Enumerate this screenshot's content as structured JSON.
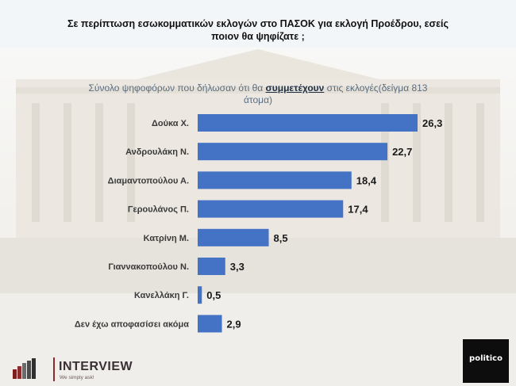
{
  "title": "Σε περίπτωση εσωκομματικών εκλογών στο ΠΑΣΟΚ για εκλογή Προέδρου, εσείς ποιον θα ψηφίζατε ;",
  "subtitle_pre": "Σύνολο ψηφοφόρων που δήλωσαν ότι θα ",
  "subtitle_emph": "συμμετέχουν",
  "subtitle_post": " στις εκλογές(δείγμα 813 άτομα)",
  "brand": {
    "name": "INTERVIEW",
    "tagline": "We simply ask!"
  },
  "partner": {
    "name": "politico"
  },
  "colors": {
    "bar": "#4472c4",
    "label": "#3a3a3a",
    "value": "#1a1a1a"
  },
  "chart_data": {
    "type": "bar",
    "orientation": "horizontal",
    "categories": [
      "Δούκα Χ.",
      "Ανδρουλάκη Ν.",
      "Διαμαντοπούλου Α.",
      "Γερουλάνος Π.",
      "Κατρίνη Μ.",
      "Γιαννακοπούλου Ν.",
      "Κανελλάκη Γ.",
      "Δεν έχω αποφασίσει ακόμα"
    ],
    "values": [
      26.3,
      22.7,
      18.4,
      17.4,
      8.5,
      3.3,
      0.5,
      2.9
    ],
    "value_labels": [
      "26,3",
      "22,7",
      "18,4",
      "17,4",
      "8,5",
      "3,3",
      "0,5",
      "2,9"
    ],
    "xlim": [
      0,
      30
    ],
    "grid": false,
    "legend": "none"
  }
}
